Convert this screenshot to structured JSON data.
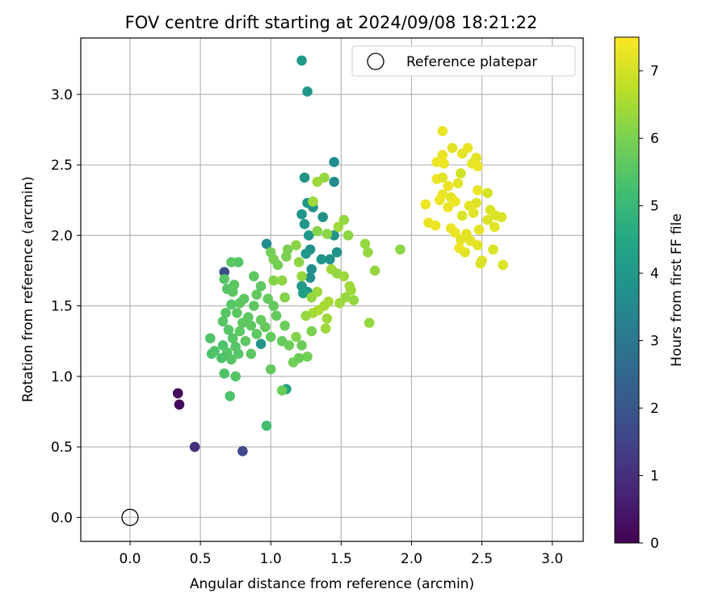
{
  "chart_data": {
    "type": "scatter",
    "title": "FOV centre drift starting at 2024/09/08 18:21:22",
    "xlabel": "Angular distance from reference (arcmin)",
    "ylabel": "Rotation from reference (arcmin)",
    "xlim": [
      -0.35,
      3.22
    ],
    "ylim": [
      -0.17,
      3.4
    ],
    "xticks": [
      "0.0",
      "0.5",
      "1.0",
      "1.5",
      "2.0",
      "2.5",
      "3.0"
    ],
    "yticks": [
      "0.0",
      "0.5",
      "1.0",
      "1.5",
      "2.0",
      "2.5",
      "3.0"
    ],
    "grid": true,
    "legend": {
      "label": "Reference platepar",
      "placement": "top-right"
    },
    "reference_point": {
      "x": 0.0,
      "y": 0.0
    },
    "colorbar": {
      "label": "Hours from first FF file",
      "range": [
        0,
        7.5
      ],
      "ticks": [
        "0",
        "1",
        "2",
        "3",
        "4",
        "5",
        "6",
        "7"
      ],
      "colormap": "viridis"
    },
    "points": [
      {
        "x": 0.34,
        "y": 0.88,
        "h": 0.1
      },
      {
        "x": 0.35,
        "y": 0.8,
        "h": 0.2
      },
      {
        "x": 0.46,
        "y": 0.5,
        "h": 1.0
      },
      {
        "x": 0.8,
        "y": 0.47,
        "h": 1.6
      },
      {
        "x": 0.67,
        "y": 1.74,
        "h": 1.8
      },
      {
        "x": 1.22,
        "y": 3.24,
        "h": 4.0
      },
      {
        "x": 1.26,
        "y": 3.02,
        "h": 4.0
      },
      {
        "x": 1.45,
        "y": 2.52,
        "h": 3.7
      },
      {
        "x": 1.24,
        "y": 2.41,
        "h": 3.8
      },
      {
        "x": 1.45,
        "y": 2.38,
        "h": 3.6
      },
      {
        "x": 1.26,
        "y": 2.23,
        "h": 3.9
      },
      {
        "x": 1.3,
        "y": 2.2,
        "h": 3.8
      },
      {
        "x": 1.22,
        "y": 2.15,
        "h": 3.9
      },
      {
        "x": 1.37,
        "y": 2.13,
        "h": 3.8
      },
      {
        "x": 1.24,
        "y": 2.08,
        "h": 3.9
      },
      {
        "x": 1.27,
        "y": 2.0,
        "h": 4.0
      },
      {
        "x": 1.45,
        "y": 2.0,
        "h": 3.9
      },
      {
        "x": 0.97,
        "y": 1.94,
        "h": 3.6
      },
      {
        "x": 1.28,
        "y": 1.9,
        "h": 3.8
      },
      {
        "x": 1.47,
        "y": 1.88,
        "h": 3.8
      },
      {
        "x": 1.25,
        "y": 1.87,
        "h": 4.0
      },
      {
        "x": 1.42,
        "y": 1.83,
        "h": 3.8
      },
      {
        "x": 1.36,
        "y": 1.83,
        "h": 3.9
      },
      {
        "x": 1.29,
        "y": 1.76,
        "h": 3.7
      },
      {
        "x": 1.28,
        "y": 1.7,
        "h": 3.7
      },
      {
        "x": 1.22,
        "y": 1.64,
        "h": 4.0
      },
      {
        "x": 1.26,
        "y": 1.6,
        "h": 3.9
      },
      {
        "x": 1.23,
        "y": 1.59,
        "h": 4.2
      },
      {
        "x": 0.93,
        "y": 1.23,
        "h": 3.9
      },
      {
        "x": 1.11,
        "y": 0.91,
        "h": 4.3
      },
      {
        "x": 1.33,
        "y": 2.38,
        "h": 6.4
      },
      {
        "x": 1.38,
        "y": 2.41,
        "h": 6.3
      },
      {
        "x": 1.3,
        "y": 2.24,
        "h": 6.4
      },
      {
        "x": 1.52,
        "y": 2.11,
        "h": 6.3
      },
      {
        "x": 1.48,
        "y": 2.06,
        "h": 6.4
      },
      {
        "x": 1.33,
        "y": 2.03,
        "h": 6.1
      },
      {
        "x": 1.4,
        "y": 2.01,
        "h": 6.2
      },
      {
        "x": 1.55,
        "y": 2.0,
        "h": 6.2
      },
      {
        "x": 1.67,
        "y": 1.94,
        "h": 6.3
      },
      {
        "x": 1.18,
        "y": 1.93,
        "h": 6.2
      },
      {
        "x": 1.92,
        "y": 1.9,
        "h": 6.2
      },
      {
        "x": 1.69,
        "y": 1.88,
        "h": 6.3
      },
      {
        "x": 1.12,
        "y": 1.9,
        "h": 6.0
      },
      {
        "x": 1.0,
        "y": 1.88,
        "h": 5.9
      },
      {
        "x": 1.11,
        "y": 1.85,
        "h": 6.0
      },
      {
        "x": 1.02,
        "y": 1.83,
        "h": 6.0
      },
      {
        "x": 1.05,
        "y": 1.79,
        "h": 5.9
      },
      {
        "x": 1.2,
        "y": 1.81,
        "h": 6.2
      },
      {
        "x": 1.43,
        "y": 1.76,
        "h": 6.4
      },
      {
        "x": 1.74,
        "y": 1.75,
        "h": 6.3
      },
      {
        "x": 1.47,
        "y": 1.73,
        "h": 6.3
      },
      {
        "x": 1.52,
        "y": 1.71,
        "h": 6.4
      },
      {
        "x": 1.22,
        "y": 1.71,
        "h": 6.3
      },
      {
        "x": 1.02,
        "y": 1.68,
        "h": 6.1
      },
      {
        "x": 1.08,
        "y": 1.68,
        "h": 6.2
      },
      {
        "x": 1.56,
        "y": 1.64,
        "h": 6.4
      },
      {
        "x": 1.57,
        "y": 1.61,
        "h": 6.4
      },
      {
        "x": 1.33,
        "y": 1.6,
        "h": 6.4
      },
      {
        "x": 1.29,
        "y": 1.56,
        "h": 6.3
      },
      {
        "x": 1.1,
        "y": 1.56,
        "h": 6.1
      },
      {
        "x": 1.53,
        "y": 1.56,
        "h": 6.3
      },
      {
        "x": 1.59,
        "y": 1.54,
        "h": 6.3
      },
      {
        "x": 1.41,
        "y": 1.53,
        "h": 6.5
      },
      {
        "x": 1.49,
        "y": 1.52,
        "h": 6.4
      },
      {
        "x": 1.38,
        "y": 1.5,
        "h": 6.5
      },
      {
        "x": 1.34,
        "y": 1.47,
        "h": 6.6
      },
      {
        "x": 1.3,
        "y": 1.45,
        "h": 6.5
      },
      {
        "x": 1.25,
        "y": 1.43,
        "h": 6.3
      },
      {
        "x": 1.4,
        "y": 1.41,
        "h": 6.4
      },
      {
        "x": 1.7,
        "y": 1.38,
        "h": 6.3
      },
      {
        "x": 1.39,
        "y": 1.34,
        "h": 6.4
      },
      {
        "x": 1.29,
        "y": 1.32,
        "h": 6.0
      },
      {
        "x": 1.18,
        "y": 1.28,
        "h": 6.1
      },
      {
        "x": 1.22,
        "y": 1.22,
        "h": 5.8
      },
      {
        "x": 1.26,
        "y": 1.14,
        "h": 5.9
      },
      {
        "x": 1.16,
        "y": 1.1,
        "h": 5.9
      },
      {
        "x": 1.08,
        "y": 0.9,
        "h": 5.8
      },
      {
        "x": 0.72,
        "y": 1.81,
        "h": 5.6
      },
      {
        "x": 0.77,
        "y": 1.81,
        "h": 5.5
      },
      {
        "x": 0.88,
        "y": 1.71,
        "h": 5.6
      },
      {
        "x": 0.67,
        "y": 1.69,
        "h": 5.5
      },
      {
        "x": 0.74,
        "y": 1.65,
        "h": 5.6
      },
      {
        "x": 0.93,
        "y": 1.64,
        "h": 5.6
      },
      {
        "x": 0.69,
        "y": 1.62,
        "h": 5.5
      },
      {
        "x": 0.73,
        "y": 1.6,
        "h": 5.6
      },
      {
        "x": 0.9,
        "y": 1.58,
        "h": 5.7
      },
      {
        "x": 0.81,
        "y": 1.55,
        "h": 5.6
      },
      {
        "x": 0.98,
        "y": 1.55,
        "h": 5.7
      },
      {
        "x": 0.72,
        "y": 1.51,
        "h": 5.5
      },
      {
        "x": 0.78,
        "y": 1.52,
        "h": 5.6
      },
      {
        "x": 0.88,
        "y": 1.5,
        "h": 5.6
      },
      {
        "x": 1.02,
        "y": 1.5,
        "h": 5.7
      },
      {
        "x": 0.68,
        "y": 1.45,
        "h": 5.5
      },
      {
        "x": 0.76,
        "y": 1.45,
        "h": 5.6
      },
      {
        "x": 0.84,
        "y": 1.42,
        "h": 5.6
      },
      {
        "x": 0.93,
        "y": 1.4,
        "h": 5.7
      },
      {
        "x": 1.04,
        "y": 1.43,
        "h": 5.7
      },
      {
        "x": 0.66,
        "y": 1.39,
        "h": 5.5
      },
      {
        "x": 0.8,
        "y": 1.38,
        "h": 5.6
      },
      {
        "x": 0.86,
        "y": 1.36,
        "h": 5.6
      },
      {
        "x": 0.96,
        "y": 1.35,
        "h": 5.7
      },
      {
        "x": 1.1,
        "y": 1.36,
        "h": 5.8
      },
      {
        "x": 0.7,
        "y": 1.33,
        "h": 5.5
      },
      {
        "x": 0.78,
        "y": 1.32,
        "h": 5.6
      },
      {
        "x": 0.9,
        "y": 1.3,
        "h": 5.6
      },
      {
        "x": 1.0,
        "y": 1.28,
        "h": 5.7
      },
      {
        "x": 0.57,
        "y": 1.27,
        "h": 5.4
      },
      {
        "x": 0.73,
        "y": 1.27,
        "h": 5.5
      },
      {
        "x": 0.82,
        "y": 1.25,
        "h": 5.6
      },
      {
        "x": 1.08,
        "y": 1.25,
        "h": 5.7
      },
      {
        "x": 0.66,
        "y": 1.22,
        "h": 5.4
      },
      {
        "x": 0.75,
        "y": 1.21,
        "h": 5.5
      },
      {
        "x": 1.13,
        "y": 1.22,
        "h": 5.8
      },
      {
        "x": 0.6,
        "y": 1.18,
        "h": 5.4
      },
      {
        "x": 0.69,
        "y": 1.17,
        "h": 5.5
      },
      {
        "x": 0.77,
        "y": 1.16,
        "h": 5.5
      },
      {
        "x": 0.86,
        "y": 1.16,
        "h": 5.6
      },
      {
        "x": 0.58,
        "y": 1.16,
        "h": 5.4
      },
      {
        "x": 0.65,
        "y": 1.13,
        "h": 5.4
      },
      {
        "x": 0.72,
        "y": 1.12,
        "h": 5.5
      },
      {
        "x": 1.2,
        "y": 1.13,
        "h": 5.8
      },
      {
        "x": 1.0,
        "y": 1.05,
        "h": 5.7
      },
      {
        "x": 0.67,
        "y": 1.02,
        "h": 5.4
      },
      {
        "x": 0.75,
        "y": 1.0,
        "h": 5.5
      },
      {
        "x": 0.71,
        "y": 0.86,
        "h": 5.4
      },
      {
        "x": 0.97,
        "y": 0.65,
        "h": 5.2
      },
      {
        "x": 2.22,
        "y": 2.74,
        "h": 7.3
      },
      {
        "x": 2.29,
        "y": 2.62,
        "h": 7.2
      },
      {
        "x": 2.4,
        "y": 2.62,
        "h": 7.3
      },
      {
        "x": 2.36,
        "y": 2.58,
        "h": 7.2
      },
      {
        "x": 2.22,
        "y": 2.57,
        "h": 7.3
      },
      {
        "x": 2.46,
        "y": 2.55,
        "h": 7.2
      },
      {
        "x": 2.18,
        "y": 2.52,
        "h": 7.3
      },
      {
        "x": 2.23,
        "y": 2.51,
        "h": 7.3
      },
      {
        "x": 2.43,
        "y": 2.51,
        "h": 7.2
      },
      {
        "x": 2.47,
        "y": 2.49,
        "h": 7.3
      },
      {
        "x": 2.35,
        "y": 2.44,
        "h": 7.0
      },
      {
        "x": 2.18,
        "y": 2.4,
        "h": 7.3
      },
      {
        "x": 2.22,
        "y": 2.41,
        "h": 7.2
      },
      {
        "x": 2.33,
        "y": 2.37,
        "h": 7.2
      },
      {
        "x": 2.26,
        "y": 2.35,
        "h": 7.3
      },
      {
        "x": 2.47,
        "y": 2.32,
        "h": 7.3
      },
      {
        "x": 2.54,
        "y": 2.3,
        "h": 7.0
      },
      {
        "x": 2.22,
        "y": 2.29,
        "h": 7.3
      },
      {
        "x": 2.28,
        "y": 2.27,
        "h": 7.2
      },
      {
        "x": 2.2,
        "y": 2.25,
        "h": 7.3
      },
      {
        "x": 2.31,
        "y": 2.24,
        "h": 7.3
      },
      {
        "x": 2.46,
        "y": 2.23,
        "h": 7.1
      },
      {
        "x": 2.41,
        "y": 2.21,
        "h": 7.2
      },
      {
        "x": 2.1,
        "y": 2.22,
        "h": 7.3
      },
      {
        "x": 2.26,
        "y": 2.2,
        "h": 7.3
      },
      {
        "x": 2.56,
        "y": 2.18,
        "h": 7.1
      },
      {
        "x": 2.44,
        "y": 2.16,
        "h": 7.2
      },
      {
        "x": 2.36,
        "y": 2.14,
        "h": 7.1
      },
      {
        "x": 2.6,
        "y": 2.14,
        "h": 7.1
      },
      {
        "x": 2.64,
        "y": 2.13,
        "h": 7.1
      },
      {
        "x": 2.54,
        "y": 2.11,
        "h": 7.1
      },
      {
        "x": 2.12,
        "y": 2.09,
        "h": 7.3
      },
      {
        "x": 2.17,
        "y": 2.07,
        "h": 7.3
      },
      {
        "x": 2.59,
        "y": 2.06,
        "h": 7.2
      },
      {
        "x": 2.48,
        "y": 2.04,
        "h": 7.2
      },
      {
        "x": 2.28,
        "y": 2.05,
        "h": 7.3
      },
      {
        "x": 2.31,
        "y": 2.02,
        "h": 7.3
      },
      {
        "x": 2.39,
        "y": 2.01,
        "h": 7.2
      },
      {
        "x": 2.35,
        "y": 1.97,
        "h": 7.2
      },
      {
        "x": 2.42,
        "y": 1.96,
        "h": 7.2
      },
      {
        "x": 2.34,
        "y": 1.91,
        "h": 7.3
      },
      {
        "x": 2.47,
        "y": 1.93,
        "h": 7.2
      },
      {
        "x": 2.58,
        "y": 1.9,
        "h": 7.1
      },
      {
        "x": 2.38,
        "y": 1.88,
        "h": 7.2
      },
      {
        "x": 2.5,
        "y": 1.82,
        "h": 7.1
      },
      {
        "x": 2.49,
        "y": 1.8,
        "h": 7.1
      },
      {
        "x": 2.65,
        "y": 1.79,
        "h": 7.1
      }
    ]
  }
}
